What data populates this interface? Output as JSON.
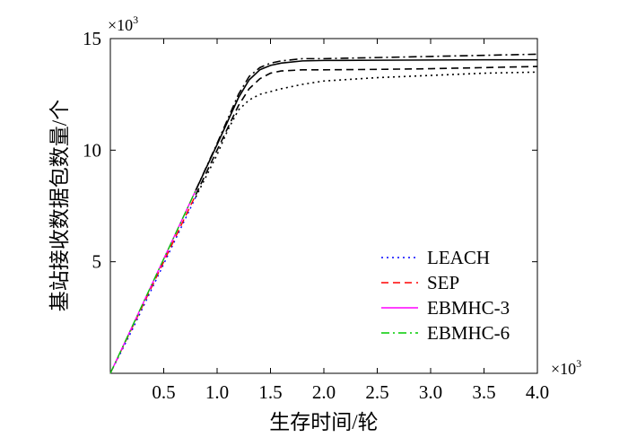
{
  "chart_data": {
    "type": "line",
    "title": "",
    "xlabel": "生存时间/轮",
    "ylabel": "基站接收数据包数量/个",
    "x_multiplier": "×10",
    "x_multiplier_exp": "3",
    "y_multiplier": "×10",
    "y_multiplier_exp": "3",
    "xlim": [
      0,
      4.0
    ],
    "ylim": [
      0,
      15
    ],
    "x_ticks": [
      0.5,
      1.0,
      1.5,
      2.0,
      2.5,
      3.0,
      3.5,
      4.0
    ],
    "x_tick_labels": [
      "0.5",
      "1.0",
      "1.5",
      "2.0",
      "2.5",
      "3.0",
      "3.5",
      "4.0"
    ],
    "y_ticks": [
      5,
      10,
      15
    ],
    "y_tick_labels": [
      "5",
      "10",
      "15"
    ],
    "grid": false,
    "legend_position": "bottom-right",
    "series": [
      {
        "name": "LEACH",
        "style": "dotted",
        "legend_color": "#0000ff",
        "x": [
          0,
          0.2,
          0.4,
          0.6,
          0.8,
          1.0,
          1.1,
          1.2,
          1.3,
          1.4,
          1.6,
          1.8,
          2.0,
          2.5,
          3.0,
          3.5,
          4.0
        ],
        "y": [
          0,
          1.9,
          3.9,
          5.9,
          7.9,
          9.8,
          10.9,
          11.8,
          12.25,
          12.5,
          12.75,
          12.95,
          13.1,
          13.25,
          13.35,
          13.45,
          13.5
        ]
      },
      {
        "name": "SEP",
        "style": "dashed",
        "legend_color": "#ff0000",
        "x": [
          0,
          0.2,
          0.4,
          0.6,
          0.8,
          1.0,
          1.1,
          1.2,
          1.3,
          1.4,
          1.5,
          1.6,
          1.8,
          2.0,
          2.5,
          3.0,
          3.5,
          4.0
        ],
        "y": [
          0,
          2.0,
          4.0,
          6.0,
          8.0,
          10.0,
          11.0,
          12.0,
          12.75,
          13.2,
          13.45,
          13.55,
          13.6,
          13.6,
          13.62,
          13.65,
          13.7,
          13.75
        ]
      },
      {
        "name": "EBMHC-3",
        "style": "solid",
        "legend_color": "#ff00ff",
        "x": [
          0,
          0.2,
          0.4,
          0.6,
          0.8,
          1.0,
          1.1,
          1.2,
          1.3,
          1.4,
          1.5,
          1.6,
          1.8,
          2.0,
          2.5,
          3.0,
          3.5,
          4.0
        ],
        "y": [
          0,
          2.05,
          4.1,
          6.15,
          8.2,
          10.25,
          11.3,
          12.35,
          13.15,
          13.6,
          13.8,
          13.9,
          14.0,
          14.02,
          14.03,
          14.04,
          14.05,
          14.05
        ]
      },
      {
        "name": "EBMHC-6",
        "style": "dashdot",
        "legend_color": "#00cc00",
        "x": [
          0,
          0.2,
          0.4,
          0.6,
          0.8,
          1.0,
          1.1,
          1.2,
          1.3,
          1.4,
          1.5,
          1.6,
          1.8,
          2.0,
          2.5,
          3.0,
          3.5,
          4.0
        ],
        "y": [
          0,
          2.05,
          4.1,
          6.15,
          8.2,
          10.3,
          11.4,
          12.5,
          13.3,
          13.7,
          13.9,
          14.0,
          14.1,
          14.1,
          14.15,
          14.2,
          14.25,
          14.3
        ]
      }
    ]
  }
}
